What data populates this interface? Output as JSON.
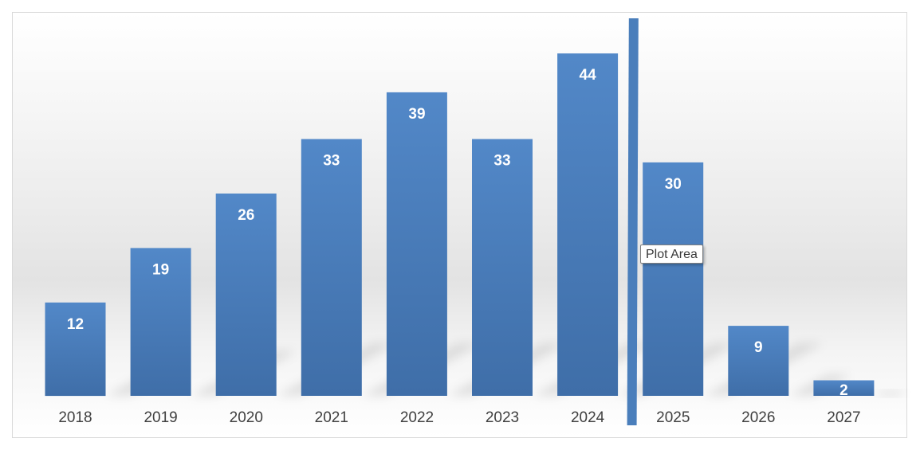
{
  "chart_data": {
    "type": "bar",
    "categories": [
      "2018",
      "2019",
      "2020",
      "2021",
      "2022",
      "2023",
      "2024",
      "2025",
      "2026",
      "2027"
    ],
    "values": [
      12,
      19,
      26,
      33,
      39,
      33,
      44,
      30,
      9,
      2
    ],
    "data_labels": [
      "12",
      "19",
      "26",
      "33",
      "39",
      "33",
      "44",
      "30",
      "9",
      "2"
    ],
    "ylim": [
      0,
      48
    ],
    "grid": false,
    "legend": "none",
    "bar_color": "#4a7ebb",
    "marker_line": {
      "after_category": "2024",
      "color": "#4a7ebb"
    }
  },
  "tooltip": {
    "text": "Plot Area"
  }
}
